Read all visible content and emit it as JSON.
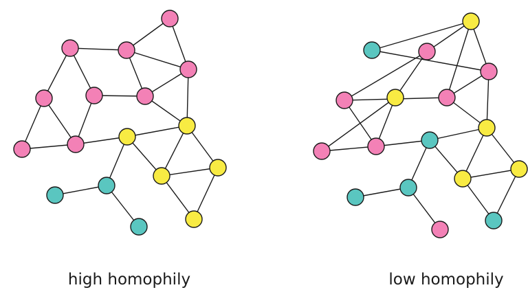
{
  "colors": {
    "pink": "#f381b6",
    "yellow": "#f8eb43",
    "teal": "#5ac6c0",
    "stroke": "#1a1a1a"
  },
  "graphs": [
    {
      "caption": "high homophily",
      "node_colors": [
        "pink",
        "pink",
        "pink",
        "pink",
        "pink",
        "pink",
        "pink",
        "pink",
        "pink",
        "yellow",
        "yellow",
        "yellow",
        "yellow",
        "yellow",
        "teal",
        "teal",
        "teal"
      ]
    },
    {
      "caption": "low homophily",
      "node_colors": [
        "teal",
        "pink",
        "yellow",
        "pink",
        "yellow",
        "pink",
        "pink",
        "pink",
        "pink",
        "teal",
        "yellow",
        "yellow",
        "yellow",
        "teal",
        "teal",
        "teal",
        "pink"
      ]
    }
  ]
}
